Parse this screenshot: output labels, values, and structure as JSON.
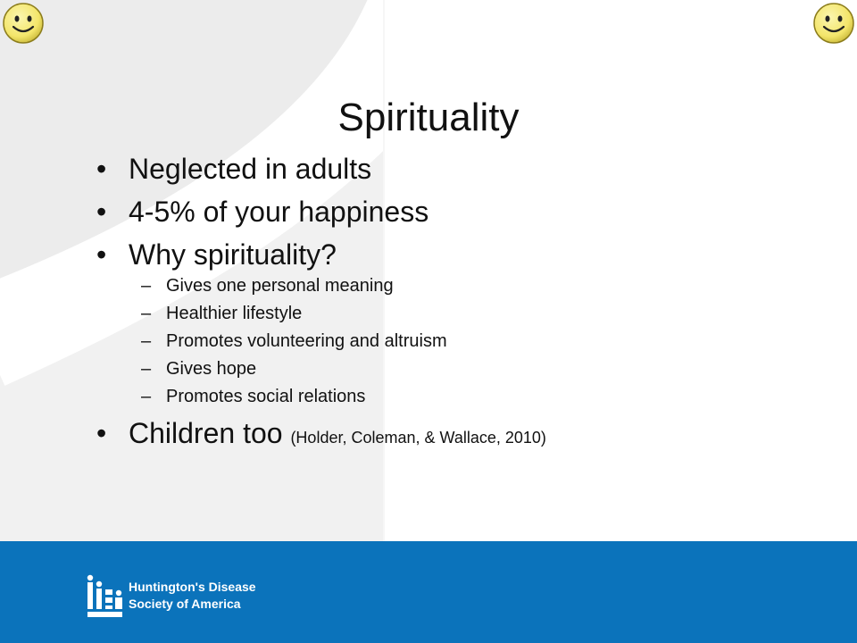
{
  "slide": {
    "title": "Spirituality",
    "bullets": [
      {
        "marker": "•",
        "text": "Neglected in adults"
      },
      {
        "marker": "•",
        "text": "4-5% of your happiness"
      },
      {
        "marker": "•",
        "text": "Why spirituality?"
      },
      {
        "marker": "•",
        "text": "Children too",
        "citation": "(Holder, Coleman, & Wallace, 2010)"
      }
    ],
    "sub_bullets": [
      {
        "marker": "–",
        "text": "Gives one personal meaning"
      },
      {
        "marker": "–",
        "text": "Healthier lifestyle"
      },
      {
        "marker": "–",
        "text": "Promotes volunteering and altruism"
      },
      {
        "marker": "–",
        "text": "Gives hope"
      },
      {
        "marker": "–",
        "text": "Promotes social relations"
      }
    ]
  },
  "footer": {
    "logo_line1": "Huntington's Disease",
    "logo_line2": "Society of America"
  },
  "icons": {
    "corner_left": "smiley-face-icon",
    "corner_right": "smiley-face-icon",
    "logo": "hdsa-logo-icon"
  },
  "colors": {
    "footer_blue": "#0b73bb",
    "smiley_yellow": "#f3e56a",
    "text": "#111111"
  }
}
